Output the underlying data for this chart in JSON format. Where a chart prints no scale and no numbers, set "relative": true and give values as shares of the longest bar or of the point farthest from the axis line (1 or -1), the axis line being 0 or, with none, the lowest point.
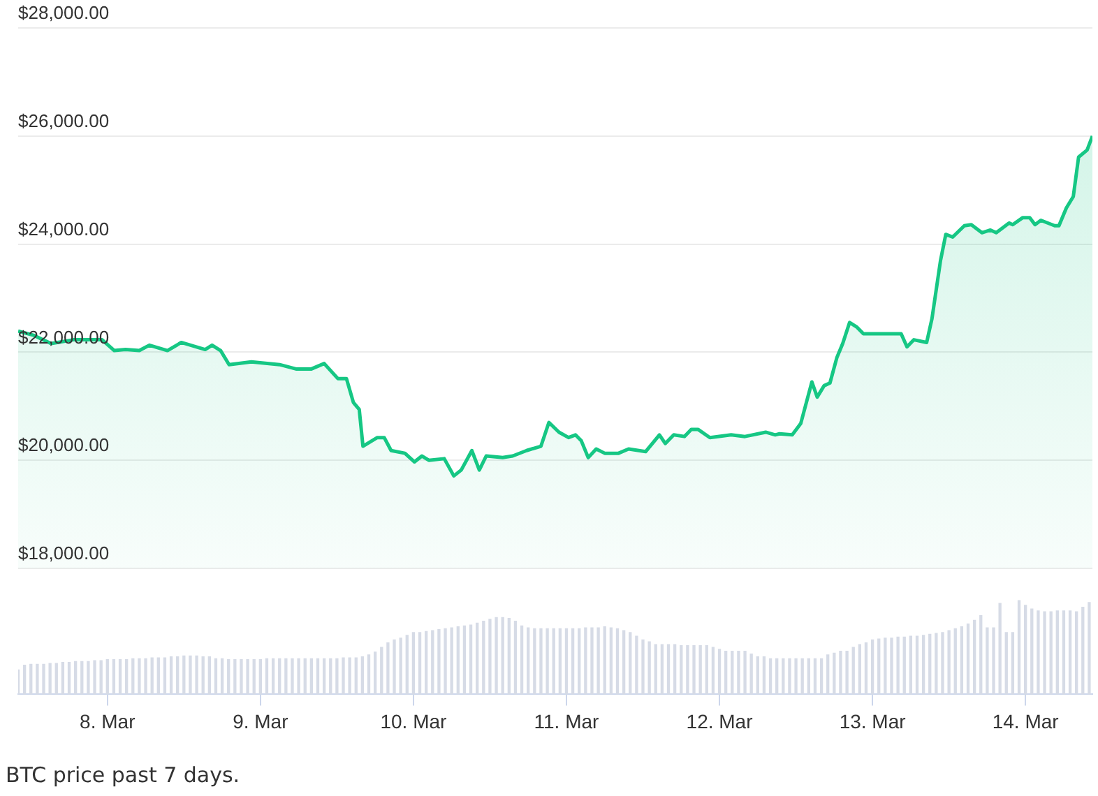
{
  "chart_data": [
    {
      "type": "area",
      "color": "#16c784",
      "xlim": [
        "--03-07T10:00",
        "--03-14T10:30"
      ],
      "ylim": [
        18000,
        28000
      ],
      "yticks": [
        {
          "value": 18000,
          "label": "$18,000.00"
        },
        {
          "value": 20000,
          "label": "$20,000.00"
        },
        {
          "value": 22000,
          "label": "$22,000.00"
        },
        {
          "value": 24000,
          "label": "$24,000.00"
        },
        {
          "value": 26000,
          "label": "$26,000.00"
        },
        {
          "value": 28000,
          "label": "$28,000.00"
        }
      ],
      "grid": "y",
      "tick_labels": "y",
      "annotations": [
        "BTC price past 7 days."
      ],
      "x": [
        "--03-07T10:00",
        "--03-07T12:30",
        "--03-07T15:10",
        "--03-07T18:40",
        "--03-07T23:10",
        "--03-08T01:05",
        "--03-08T02:50",
        "--03-08T05:00",
        "--03-08T06:35",
        "--03-08T09:25",
        "--03-08T11:35",
        "--03-08T15:20",
        "--03-08T16:25",
        "--03-08T17:45",
        "--03-08T19:05",
        "--03-08T22:35",
        "--03-09T03:00",
        "--03-09T05:35",
        "--03-09T08:00",
        "--03-09T10:00",
        "--03-09T12:10",
        "--03-09T13:30",
        "--03-09T14:35",
        "--03-09T15:30",
        "--03-09T16:05",
        "--03-09T18:20",
        "--03-09T19:25",
        "--03-09T20:30",
        "--03-09T22:40",
        "--03-10T00:10",
        "--03-10T01:20",
        "--03-10T02:25",
        "--03-10T04:50",
        "--03-10T06:20",
        "--03-10T07:30",
        "--03-10T09:10",
        "--03-10T10:20",
        "--03-10T11:25",
        "--03-10T14:00",
        "--03-10T15:35",
        "--03-10T17:45",
        "--03-10T20:00",
        "--03-10T21:15",
        "--03-10T22:50",
        "--03-11T00:20",
        "--03-11T01:25",
        "--03-11T02:20",
        "--03-11T03:25",
        "--03-11T04:40",
        "--03-11T06:00",
        "--03-11T08:10",
        "--03-11T09:45",
        "--03-11T12:25",
        "--03-11T14:35",
        "--03-11T15:30",
        "--03-11T16:50",
        "--03-11T18:30",
        "--03-11T19:35",
        "--03-11T20:40",
        "--03-11T22:30",
        "--03-12T01:50",
        "--03-12T04:00",
        "--03-12T07:15",
        "--03-12T08:45",
        "--03-12T09:25",
        "--03-12T11:25",
        "--03-12T12:45",
        "--03-12T14:30",
        "--03-12T15:20",
        "--03-12T16:25",
        "--03-12T17:20",
        "--03-12T18:25",
        "--03-12T19:20",
        "--03-12T20:25",
        "--03-12T21:30",
        "--03-12T22:35",
        "--03-13T01:10",
        "--03-13T04:30",
        "--03-13T05:25",
        "--03-13T06:30",
        "--03-13T08:30",
        "--03-13T09:20",
        "--03-13T10:40",
        "--03-13T11:30",
        "--03-13T12:35",
        "--03-13T14:25",
        "--03-13T15:30",
        "--03-13T17:10",
        "--03-13T18:30",
        "--03-13T19:25",
        "--03-13T21:25",
        "--03-13T22:00",
        "--03-13T23:35",
        "--03-14T00:40",
        "--03-14T01:30",
        "--03-14T02:25",
        "--03-14T04:35",
        "--03-14T05:15",
        "--03-14T06:25",
        "--03-14T07:30",
        "--03-14T08:20",
        "--03-14T09:40",
        "--03-14T10:30"
      ],
      "values": [
        22390,
        22310,
        22160,
        22230,
        22230,
        22030,
        22050,
        22030,
        22130,
        22030,
        22180,
        22050,
        22130,
        22030,
        21770,
        21820,
        21770,
        21690,
        21690,
        21790,
        21510,
        21510,
        21070,
        20940,
        20260,
        20420,
        20420,
        20180,
        20130,
        19970,
        20080,
        20000,
        20030,
        19710,
        19820,
        20180,
        19820,
        20080,
        20050,
        20080,
        20180,
        20260,
        20700,
        20520,
        20420,
        20470,
        20360,
        20050,
        20210,
        20130,
        20130,
        20210,
        20160,
        20470,
        20310,
        20470,
        20440,
        20570,
        20570,
        20420,
        20470,
        20440,
        20520,
        20470,
        20490,
        20470,
        20680,
        21450,
        21170,
        21380,
        21430,
        21900,
        22160,
        22550,
        22470,
        22340,
        22340,
        22340,
        22100,
        22230,
        22180,
        22620,
        23690,
        24180,
        24130,
        24340,
        24360,
        24210,
        24260,
        24210,
        24390,
        24360,
        24490,
        24490,
        24360,
        24440,
        24340,
        24340,
        24670,
        24880,
        25610,
        25740,
        26000
      ]
    },
    {
      "type": "bar",
      "relative": true,
      "color": "#d6dbe6",
      "xlim": [
        "--03-07T10:00",
        "--03-14T10:30"
      ],
      "xticks": [
        {
          "value": "--03-08",
          "label": "8. Mar"
        },
        {
          "value": "--03-09",
          "label": "9. Mar"
        },
        {
          "value": "--03-10",
          "label": "10. Mar"
        },
        {
          "value": "--03-11",
          "label": "11. Mar"
        },
        {
          "value": "--03-12",
          "label": "12. Mar"
        },
        {
          "value": "--03-13",
          "label": "13. Mar"
        },
        {
          "value": "--03-14",
          "label": "14. Mar"
        }
      ],
      "tick_labels": "x",
      "grid": false,
      "x": [
        "--03-07T10:00",
        "--03-07T11:00",
        "--03-07T12:00",
        "--03-07T13:00",
        "--03-07T14:00",
        "--03-07T15:00",
        "--03-07T16:00",
        "--03-07T17:00",
        "--03-07T18:00",
        "--03-07T19:00",
        "--03-07T20:00",
        "--03-07T21:00",
        "--03-07T22:00",
        "--03-07T23:00",
        "--03-08T00:00",
        "--03-08T01:00",
        "--03-08T02:00",
        "--03-08T03:00",
        "--03-08T04:00",
        "--03-08T05:00",
        "--03-08T06:00",
        "--03-08T07:00",
        "--03-08T08:00",
        "--03-08T09:00",
        "--03-08T10:00",
        "--03-08T11:00",
        "--03-08T12:00",
        "--03-08T13:00",
        "--03-08T14:00",
        "--03-08T15:00",
        "--03-08T16:00",
        "--03-08T17:00",
        "--03-08T18:00",
        "--03-08T19:00",
        "--03-08T20:00",
        "--03-08T21:00",
        "--03-08T22:00",
        "--03-08T23:00",
        "--03-09T00:00",
        "--03-09T01:00",
        "--03-09T02:00",
        "--03-09T03:00",
        "--03-09T04:00",
        "--03-09T05:00",
        "--03-09T06:00",
        "--03-09T07:00",
        "--03-09T08:00",
        "--03-09T09:00",
        "--03-09T10:00",
        "--03-09T11:00",
        "--03-09T12:00",
        "--03-09T13:00",
        "--03-09T14:00",
        "--03-09T15:00",
        "--03-09T16:00",
        "--03-09T17:00",
        "--03-09T18:00",
        "--03-09T19:00",
        "--03-09T20:00",
        "--03-09T21:00",
        "--03-09T22:00",
        "--03-09T23:00",
        "--03-10T00:00",
        "--03-10T01:00",
        "--03-10T02:00",
        "--03-10T03:00",
        "--03-10T04:00",
        "--03-10T05:00",
        "--03-10T06:00",
        "--03-10T07:00",
        "--03-10T08:00",
        "--03-10T09:00",
        "--03-10T10:00",
        "--03-10T11:00",
        "--03-10T12:00",
        "--03-10T13:00",
        "--03-10T14:00",
        "--03-10T15:00",
        "--03-10T16:00",
        "--03-10T17:00",
        "--03-10T18:00",
        "--03-10T19:00",
        "--03-10T20:00",
        "--03-10T21:00",
        "--03-10T22:00",
        "--03-10T23:00",
        "--03-11T00:00",
        "--03-11T01:00",
        "--03-11T02:00",
        "--03-11T03:00",
        "--03-11T04:00",
        "--03-11T05:00",
        "--03-11T06:00",
        "--03-11T07:00",
        "--03-11T08:00",
        "--03-11T09:00",
        "--03-11T10:00",
        "--03-11T11:00",
        "--03-11T12:00",
        "--03-11T13:00",
        "--03-11T14:00",
        "--03-11T15:00",
        "--03-11T16:00",
        "--03-11T17:00",
        "--03-11T18:00",
        "--03-11T19:00",
        "--03-11T20:00",
        "--03-11T21:00",
        "--03-11T22:00",
        "--03-11T23:00",
        "--03-12T00:00",
        "--03-12T01:00",
        "--03-12T02:00",
        "--03-12T03:00",
        "--03-12T04:00",
        "--03-12T05:00",
        "--03-12T06:00",
        "--03-12T07:00",
        "--03-12T08:00",
        "--03-12T09:00",
        "--03-12T10:00",
        "--03-12T11:00",
        "--03-12T12:00",
        "--03-12T13:00",
        "--03-12T14:00",
        "--03-12T15:00",
        "--03-12T16:00",
        "--03-12T17:00",
        "--03-12T18:00",
        "--03-12T19:00",
        "--03-12T20:00",
        "--03-12T21:00",
        "--03-12T22:00",
        "--03-12T23:00",
        "--03-13T00:00",
        "--03-13T01:00",
        "--03-13T02:00",
        "--03-13T03:00",
        "--03-13T04:00",
        "--03-13T05:00",
        "--03-13T06:00",
        "--03-13T07:00",
        "--03-13T08:00",
        "--03-13T09:00",
        "--03-13T10:00",
        "--03-13T11:00",
        "--03-13T12:00",
        "--03-13T13:00",
        "--03-13T14:00",
        "--03-13T15:00",
        "--03-13T16:00",
        "--03-13T17:00",
        "--03-13T18:00",
        "--03-13T19:00",
        "--03-13T20:00",
        "--03-13T21:00",
        "--03-13T22:00",
        "--03-13T23:00",
        "--03-14T00:00",
        "--03-14T01:00",
        "--03-14T02:00",
        "--03-14T03:00",
        "--03-14T04:00",
        "--03-14T05:00",
        "--03-14T06:00",
        "--03-14T07:00",
        "--03-14T08:00",
        "--03-14T09:00",
        "--03-14T10:00"
      ],
      "values": [
        0.26,
        0.31,
        0.32,
        0.32,
        0.32,
        0.33,
        0.33,
        0.34,
        0.34,
        0.35,
        0.35,
        0.35,
        0.36,
        0.36,
        0.37,
        0.37,
        0.37,
        0.37,
        0.38,
        0.38,
        0.38,
        0.39,
        0.39,
        0.39,
        0.4,
        0.4,
        0.41,
        0.41,
        0.41,
        0.4,
        0.4,
        0.38,
        0.38,
        0.37,
        0.37,
        0.37,
        0.37,
        0.37,
        0.37,
        0.38,
        0.38,
        0.38,
        0.38,
        0.38,
        0.38,
        0.38,
        0.38,
        0.38,
        0.38,
        0.38,
        0.38,
        0.39,
        0.39,
        0.39,
        0.4,
        0.42,
        0.45,
        0.5,
        0.55,
        0.58,
        0.6,
        0.63,
        0.66,
        0.66,
        0.67,
        0.68,
        0.69,
        0.7,
        0.71,
        0.72,
        0.73,
        0.74,
        0.76,
        0.78,
        0.8,
        0.82,
        0.82,
        0.81,
        0.78,
        0.73,
        0.71,
        0.7,
        0.7,
        0.7,
        0.7,
        0.7,
        0.7,
        0.7,
        0.7,
        0.71,
        0.71,
        0.71,
        0.72,
        0.71,
        0.7,
        0.68,
        0.66,
        0.62,
        0.58,
        0.56,
        0.53,
        0.53,
        0.53,
        0.53,
        0.52,
        0.52,
        0.52,
        0.52,
        0.52,
        0.5,
        0.48,
        0.46,
        0.46,
        0.46,
        0.46,
        0.43,
        0.4,
        0.4,
        0.38,
        0.38,
        0.38,
        0.38,
        0.38,
        0.38,
        0.38,
        0.38,
        0.38,
        0.42,
        0.44,
        0.46,
        0.46,
        0.5,
        0.53,
        0.55,
        0.58,
        0.59,
        0.6,
        0.6,
        0.61,
        0.61,
        0.62,
        0.62,
        0.63,
        0.64,
        0.65,
        0.66,
        0.68,
        0.7,
        0.72,
        0.75,
        0.79,
        0.84,
        0.71,
        0.71,
        0.97,
        0.66,
        0.66,
        1.0,
        0.95,
        0.91,
        0.89,
        0.88,
        0.88,
        0.89,
        0.89,
        0.89,
        0.88,
        0.93,
        0.98
      ]
    }
  ]
}
